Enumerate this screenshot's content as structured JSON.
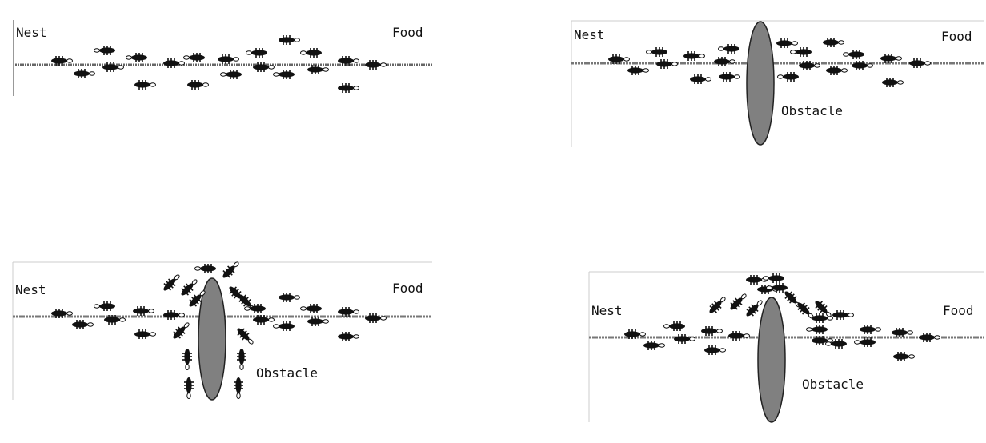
{
  "panels": [
    {
      "id": "panel-1",
      "nest_label": "Nest",
      "food_label": "Food",
      "obstacle_label": ""
    },
    {
      "id": "panel-2",
      "nest_label": "Nest",
      "food_label": "Food",
      "obstacle_label": "Obstacle"
    },
    {
      "id": "panel-3",
      "nest_label": "Nest",
      "food_label": "Food",
      "obstacle_label": "Obstacle"
    },
    {
      "id": "panel-4",
      "nest_label": "Nest",
      "food_label": "Food",
      "obstacle_label": "Obstacle"
    }
  ],
  "colors": {
    "ant": "#111111",
    "trail": "#777777",
    "obstacle_fill": "#808080",
    "obstacle_stroke": "#222222",
    "frame": "#cccccc"
  }
}
